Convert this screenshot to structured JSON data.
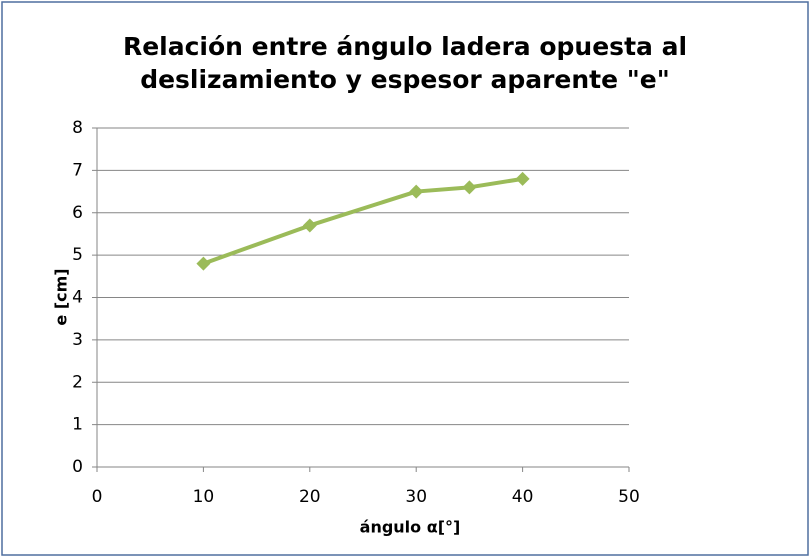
{
  "chart_data": {
    "type": "line",
    "title": "Relación entre ángulo ladera opuesta al deslizamiento y espesor aparente \"e\"",
    "x_label": "ángulo α[°]",
    "y_label": "e [cm]",
    "x": [
      10,
      20,
      30,
      35,
      40
    ],
    "series": [
      {
        "name": "e",
        "color": "#9bbb59",
        "values": [
          4.8,
          5.7,
          6.5,
          6.6,
          6.8
        ]
      }
    ],
    "xlim": [
      0,
      50
    ],
    "xticks": [
      0,
      10,
      20,
      30,
      40,
      50
    ],
    "ylim": [
      0,
      8
    ],
    "yticks": [
      0,
      1,
      2,
      3,
      4,
      5,
      6,
      7,
      8
    ],
    "grid": true
  }
}
